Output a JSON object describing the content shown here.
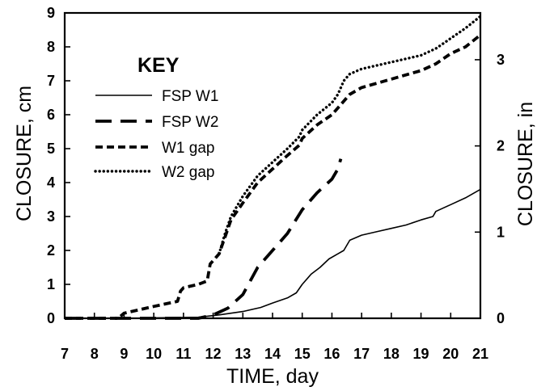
{
  "chart_data": {
    "type": "line",
    "xlabel": "TIME, day",
    "ylabel": "CLOSURE, cm",
    "y2label": "CLOSURE, in",
    "xlim": [
      7,
      21
    ],
    "ylim": [
      0,
      9
    ],
    "y2lim": [
      0,
      3.543
    ],
    "xticks": [
      7,
      8,
      9,
      10,
      11,
      12,
      13,
      14,
      15,
      16,
      17,
      18,
      19,
      20,
      21
    ],
    "yticks": [
      0,
      1,
      2,
      3,
      4,
      5,
      6,
      7,
      8,
      9
    ],
    "y2ticks": [
      0,
      1,
      2,
      3
    ],
    "grid": false,
    "legend": {
      "title": "KEY",
      "position": "upper-left"
    },
    "series": [
      {
        "name": "FSP W1",
        "style": "solid",
        "x": [
          7.0,
          9.0,
          11.5,
          12.2,
          13.0,
          13.6,
          14.0,
          14.5,
          14.8,
          15.0,
          15.3,
          15.6,
          15.9,
          16.2,
          16.4,
          16.6,
          17.0,
          17.5,
          18.0,
          18.5,
          19.0,
          19.4,
          19.5,
          20.0,
          20.5,
          21.0
        ],
        "y": [
          0.0,
          0.0,
          0.03,
          0.1,
          0.2,
          0.32,
          0.45,
          0.6,
          0.75,
          1.0,
          1.3,
          1.5,
          1.75,
          1.9,
          2.0,
          2.3,
          2.45,
          2.55,
          2.65,
          2.75,
          2.9,
          3.0,
          3.15,
          3.35,
          3.55,
          3.8
        ]
      },
      {
        "name": "FSP W2",
        "style": "dash",
        "x": [
          7.0,
          11.5,
          12.0,
          12.5,
          13.0,
          13.5,
          14.0,
          14.5,
          15.0,
          15.5,
          16.0,
          16.2,
          16.3
        ],
        "y": [
          0.0,
          0.0,
          0.1,
          0.3,
          0.7,
          1.5,
          2.0,
          2.5,
          3.2,
          3.7,
          4.1,
          4.4,
          4.7
        ]
      },
      {
        "name": "W1 gap",
        "style": "shortdash",
        "x": [
          7.0,
          8.8,
          9.0,
          9.5,
          10.0,
          10.8,
          10.9,
          11.0,
          11.5,
          11.8,
          11.9,
          12.2,
          12.4,
          12.6,
          13.0,
          13.5,
          14.0,
          14.5,
          14.9,
          15.0,
          15.5,
          16.0,
          16.2,
          16.4,
          16.6,
          17.0,
          18.0,
          19.0,
          19.5,
          20.0,
          20.5,
          21.0
        ],
        "y": [
          0.0,
          0.0,
          0.15,
          0.25,
          0.35,
          0.5,
          0.8,
          0.9,
          1.0,
          1.1,
          1.6,
          1.9,
          2.4,
          2.9,
          3.4,
          4.0,
          4.4,
          4.8,
          5.1,
          5.3,
          5.7,
          6.0,
          6.2,
          6.4,
          6.6,
          6.8,
          7.05,
          7.3,
          7.5,
          7.8,
          8.0,
          8.35
        ]
      },
      {
        "name": "W2 gap",
        "style": "dotted",
        "x": [
          12.2,
          12.4,
          12.6,
          13.0,
          13.5,
          14.0,
          14.5,
          14.9,
          15.0,
          15.5,
          16.0,
          16.2,
          16.4,
          16.6,
          17.0,
          18.0,
          19.0,
          19.5,
          20.0,
          20.5,
          21.0
        ],
        "y": [
          1.9,
          2.5,
          3.0,
          3.6,
          4.2,
          4.6,
          5.0,
          5.35,
          5.55,
          6.0,
          6.35,
          6.6,
          7.0,
          7.2,
          7.35,
          7.55,
          7.75,
          7.95,
          8.25,
          8.55,
          8.9
        ]
      }
    ]
  }
}
